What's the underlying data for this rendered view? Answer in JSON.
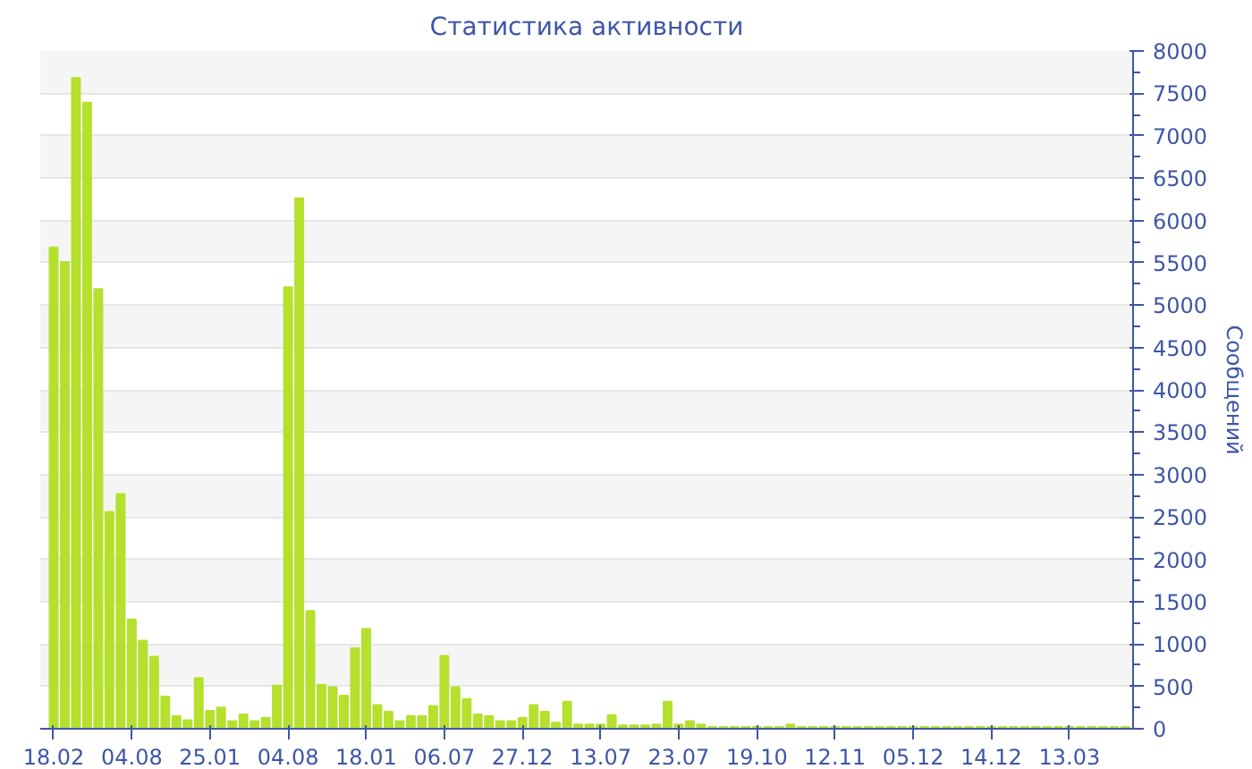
{
  "chart_data": {
    "type": "bar",
    "title": "Статистика активности",
    "ylabel": "Сообщений",
    "categories": [
      "18.02",
      null,
      null,
      null,
      null,
      null,
      null,
      "04.08",
      null,
      null,
      null,
      null,
      null,
      null,
      "25.01",
      null,
      null,
      null,
      null,
      null,
      null,
      "04.08",
      null,
      null,
      null,
      null,
      null,
      null,
      "18.01",
      null,
      null,
      null,
      null,
      null,
      null,
      "06.07",
      null,
      null,
      null,
      null,
      null,
      null,
      "27.12",
      null,
      null,
      null,
      null,
      null,
      null,
      "13.07",
      null,
      null,
      null,
      null,
      null,
      null,
      "23.07",
      null,
      null,
      null,
      null,
      null,
      null,
      "19.10",
      null,
      null,
      null,
      null,
      null,
      null,
      "12.11",
      null,
      null,
      null,
      null,
      null,
      null,
      "05.12",
      null,
      null,
      null,
      null,
      null,
      null,
      "14.12",
      null,
      null,
      null,
      null,
      null,
      null,
      "13.03",
      null,
      null,
      null,
      null,
      null
    ],
    "values": [
      5680,
      5510,
      7680,
      7390,
      5190,
      2560,
      2770,
      1290,
      1040,
      850,
      380,
      150,
      100,
      600,
      210,
      250,
      90,
      170,
      90,
      130,
      510,
      5210,
      6260,
      1390,
      520,
      490,
      390,
      950,
      1180,
      280,
      200,
      90,
      150,
      150,
      270,
      860,
      490,
      350,
      170,
      150,
      90,
      90,
      130,
      280,
      200,
      70,
      320,
      50,
      50,
      50,
      160,
      40,
      40,
      40,
      50,
      320,
      50,
      90,
      50,
      20,
      20,
      20,
      20,
      20,
      20,
      20,
      50,
      20,
      20,
      20,
      20,
      20,
      20,
      20,
      20,
      20,
      20,
      20,
      20,
      20,
      20,
      20,
      20,
      20,
      20,
      20,
      20,
      20,
      20,
      20,
      20,
      20,
      20,
      20,
      20,
      20,
      20
    ],
    "color": "#b5e02e",
    "ylim": [
      0,
      8000
    ],
    "yticks": [
      0,
      500,
      1000,
      1500,
      2000,
      2500,
      3000,
      3500,
      4000,
      4500,
      5000,
      5500,
      6000,
      6500,
      7000,
      7500,
      8000
    ],
    "grid": "y"
  }
}
